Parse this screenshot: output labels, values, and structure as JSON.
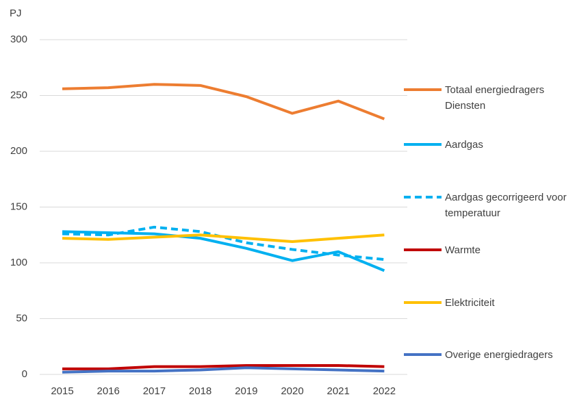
{
  "chart_data": {
    "type": "line",
    "y_label": "PJ",
    "categories": [
      "2015",
      "2016",
      "2017",
      "2018",
      "2019",
      "2020",
      "2021",
      "2022"
    ],
    "ylim": [
      0,
      300
    ],
    "yticks": [
      0,
      50,
      100,
      150,
      200,
      250,
      300
    ],
    "grid": true,
    "series": [
      {
        "name": "Totaal energiedragers Diensten",
        "color": "#ED7D31",
        "dashed": false,
        "values": [
          256,
          257,
          260,
          259,
          249,
          234,
          245,
          229
        ]
      },
      {
        "name": "Aardgas",
        "color": "#00B0F0",
        "dashed": false,
        "values": [
          128,
          127,
          126,
          122,
          113,
          102,
          110,
          93
        ]
      },
      {
        "name": "Aardgas gecorrigeerd voor temperatuur",
        "color": "#00B0F0",
        "dashed": true,
        "values": [
          126,
          125,
          132,
          128,
          118,
          112,
          107,
          103
        ]
      },
      {
        "name": "Warmte",
        "color": "#C00000",
        "dashed": false,
        "values": [
          5,
          5,
          7,
          7,
          8,
          8,
          8,
          7
        ]
      },
      {
        "name": "Elektriciteit",
        "color": "#FFC000",
        "dashed": false,
        "values": [
          122,
          121,
          123,
          125,
          122,
          119,
          122,
          125
        ]
      },
      {
        "name": "Overige energiedragers",
        "color": "#4472C4",
        "dashed": false,
        "values": [
          2,
          3,
          3,
          4,
          6,
          5,
          4,
          3
        ]
      }
    ]
  }
}
